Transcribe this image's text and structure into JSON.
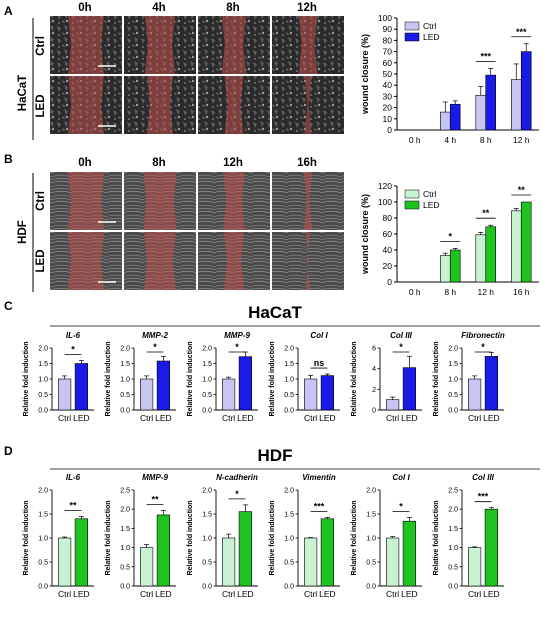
{
  "panel_labels": [
    "A",
    "B",
    "C",
    "D"
  ],
  "panelA": {
    "row_labels": [
      "Ctrl",
      "LED"
    ],
    "cell_line": "HaCaT",
    "time_labels": [
      "0h",
      "4h",
      "8h",
      "12h"
    ],
    "wound_fraction": [
      [
        0.5,
        0.42,
        0.34,
        0.26
      ],
      [
        0.5,
        0.36,
        0.26,
        0.1
      ]
    ]
  },
  "panelB": {
    "row_labels": [
      "Ctrl",
      "LED"
    ],
    "cell_line": "HDF",
    "time_labels": [
      "0h",
      "8h",
      "12h",
      "16h"
    ],
    "wound_fraction": [
      [
        0.5,
        0.46,
        0.3,
        0.12
      ],
      [
        0.5,
        0.44,
        0.28,
        0.06
      ]
    ]
  },
  "panelC": {
    "title": "HaCaT"
  },
  "panelD": {
    "title": "HDF"
  },
  "colors": {
    "ctrl_blue": "#c7c6f2",
    "led_blue": "#1a1ae6",
    "ctrl_green": "#c9f2d3",
    "led_green": "#1fc31f",
    "wound_overlay": "#c0504d"
  },
  "chart_data": [
    {
      "id": "A-closure",
      "type": "bar",
      "ylabel": "wound closure (%)",
      "categories": [
        "0 h",
        "4 h",
        "8 h",
        "12 h"
      ],
      "ylim": [
        0,
        100
      ],
      "yticks": [
        0,
        10,
        20,
        30,
        40,
        50,
        60,
        70,
        80,
        90,
        100
      ],
      "legend": "top-left",
      "series": [
        {
          "name": "Ctrl",
          "color": "#c7c6f2",
          "values": [
            0,
            16,
            31,
            45
          ],
          "errors": [
            0,
            9,
            8,
            14
          ]
        },
        {
          "name": "LED",
          "color": "#1a1ae6",
          "values": [
            0,
            23,
            49,
            70
          ],
          "errors": [
            0,
            3,
            6,
            7
          ]
        }
      ],
      "significance": [
        {
          "category": 2,
          "label": "***"
        },
        {
          "category": 3,
          "label": "***"
        }
      ]
    },
    {
      "id": "B-closure",
      "type": "bar",
      "ylabel": "wound closure (%)",
      "categories": [
        "0 h",
        "8 h",
        "12 h",
        "16 h"
      ],
      "ylim": [
        0,
        120
      ],
      "yticks": [
        0,
        20,
        40,
        60,
        80,
        100,
        120
      ],
      "legend": "top-left",
      "series": [
        {
          "name": "Ctrl",
          "color": "#c9f2d3",
          "values": [
            0,
            33,
            59,
            89
          ],
          "errors": [
            0,
            3,
            3,
            3
          ]
        },
        {
          "name": "LED",
          "color": "#1fc31f",
          "values": [
            0,
            40,
            69,
            100
          ],
          "errors": [
            0,
            2,
            2,
            0
          ]
        }
      ],
      "significance": [
        {
          "category": 1,
          "label": "*"
        },
        {
          "category": 2,
          "label": "**"
        },
        {
          "category": 3,
          "label": "**"
        }
      ]
    },
    {
      "id": "C-IL-6",
      "type": "bar",
      "title": "IL-6",
      "ylabel": "Relative fold induction",
      "categories": [
        "Ctrl",
        "LED"
      ],
      "values": [
        1.0,
        1.5
      ],
      "errors": [
        0.1,
        0.1
      ],
      "ylim": [
        0,
        2.0
      ],
      "yticks": [
        "0.0",
        "0.5",
        "1.0",
        "1.5",
        "2.0"
      ],
      "colors": [
        "#c7c6f2",
        "#1a1ae6"
      ],
      "significance": "*"
    },
    {
      "id": "C-MMP-2",
      "type": "bar",
      "title": "MMP-2",
      "ylabel": "Relative fold induction",
      "categories": [
        "Ctrl",
        "LED"
      ],
      "values": [
        1.0,
        1.58
      ],
      "errors": [
        0.1,
        0.15
      ],
      "ylim": [
        0,
        2.0
      ],
      "yticks": [
        "0.0",
        "0.5",
        "1.0",
        "1.5",
        "2.0"
      ],
      "colors": [
        "#c7c6f2",
        "#1a1ae6"
      ],
      "significance": "*"
    },
    {
      "id": "C-MMP-9",
      "type": "bar",
      "title": "MMP-9",
      "ylabel": "Relative fold induction",
      "categories": [
        "Ctrl",
        "LED"
      ],
      "values": [
        1.0,
        1.72
      ],
      "errors": [
        0.06,
        0.15
      ],
      "ylim": [
        0,
        2.0
      ],
      "yticks": [
        "0.0",
        "0.5",
        "1.0",
        "1.5",
        "2.0"
      ],
      "colors": [
        "#c7c6f2",
        "#1a1ae6"
      ],
      "significance": "*"
    },
    {
      "id": "C-Col-I",
      "type": "bar",
      "title": "Col I",
      "ylabel": "Relative fold induction",
      "categories": [
        "Ctrl",
        "LED"
      ],
      "values": [
        1.0,
        1.11
      ],
      "errors": [
        0.12,
        0.05
      ],
      "ylim": [
        0,
        2.0
      ],
      "yticks": [
        "0.0",
        "0.5",
        "1.0",
        "1.5",
        "2.0"
      ],
      "colors": [
        "#c7c6f2",
        "#1a1ae6"
      ],
      "significance": "ns"
    },
    {
      "id": "C-Col-III",
      "type": "bar",
      "title": "Col III",
      "ylabel": "Relative fold induction",
      "categories": [
        "Ctrl",
        "LED"
      ],
      "values": [
        1.0,
        4.1
      ],
      "errors": [
        0.25,
        1.1
      ],
      "ylim": [
        0,
        6
      ],
      "yticks": [
        "0",
        "2",
        "4",
        "6"
      ],
      "colors": [
        "#c7c6f2",
        "#1a1ae6"
      ],
      "significance": "*"
    },
    {
      "id": "C-Fibronectin",
      "type": "bar",
      "title": "Fibronectin",
      "ylabel": "Relative fold induction",
      "categories": [
        "Ctrl",
        "LED"
      ],
      "values": [
        1.0,
        1.73
      ],
      "errors": [
        0.1,
        0.13
      ],
      "ylim": [
        0,
        2.0
      ],
      "yticks": [
        "0.0",
        "0.5",
        "1.0",
        "1.5",
        "2.0"
      ],
      "colors": [
        "#c7c6f2",
        "#1a1ae6"
      ],
      "significance": "*"
    },
    {
      "id": "D-IL-6",
      "type": "bar",
      "title": "IL-6",
      "ylabel": "Relative fold induction",
      "categories": [
        "Ctrl",
        "LED"
      ],
      "values": [
        1.0,
        1.4
      ],
      "errors": [
        0.02,
        0.05
      ],
      "ylim": [
        0,
        2.0
      ],
      "yticks": [
        "0.0",
        "0.5",
        "1.0",
        "1.5",
        "2.0"
      ],
      "colors": [
        "#c9f2d3",
        "#1fc31f"
      ],
      "significance": "**"
    },
    {
      "id": "D-MMP-9",
      "type": "bar",
      "title": "MMP-9",
      "ylabel": "Relative fold induction",
      "categories": [
        "Ctrl",
        "LED"
      ],
      "values": [
        1.0,
        1.85
      ],
      "errors": [
        0.08,
        0.12
      ],
      "ylim": [
        0,
        2.5
      ],
      "yticks": [
        "0.0",
        "0.5",
        "1.0",
        "1.5",
        "2.0",
        "2.5"
      ],
      "colors": [
        "#c9f2d3",
        "#1fc31f"
      ],
      "significance": "**"
    },
    {
      "id": "D-N-cadherin",
      "type": "bar",
      "title": "N-cadherin",
      "ylabel": "Relative fold induction",
      "categories": [
        "Ctrl",
        "LED"
      ],
      "values": [
        1.0,
        1.55
      ],
      "errors": [
        0.08,
        0.14
      ],
      "ylim": [
        0,
        2.0
      ],
      "yticks": [
        "0.0",
        "0.5",
        "1.0",
        "1.5",
        "2.0"
      ],
      "colors": [
        "#c9f2d3",
        "#1fc31f"
      ],
      "significance": "*"
    },
    {
      "id": "D-Vimentin",
      "type": "bar",
      "title": "Vimentin",
      "ylabel": "Relative fold induction",
      "categories": [
        "Ctrl",
        "LED"
      ],
      "values": [
        1.0,
        1.4
      ],
      "errors": [
        0.01,
        0.03
      ],
      "ylim": [
        0,
        2.0
      ],
      "yticks": [
        "0.0",
        "0.5",
        "1.0",
        "1.5",
        "2.0"
      ],
      "colors": [
        "#c9f2d3",
        "#1fc31f"
      ],
      "significance": "***"
    },
    {
      "id": "D-Col-I",
      "type": "bar",
      "title": "Col I",
      "ylabel": "Relative fold induction",
      "categories": [
        "Ctrl",
        "LED"
      ],
      "values": [
        1.0,
        1.35
      ],
      "errors": [
        0.03,
        0.08
      ],
      "ylim": [
        0,
        2.0
      ],
      "yticks": [
        "0.0",
        "0.5",
        "1.0",
        "1.5",
        "2.0"
      ],
      "colors": [
        "#c9f2d3",
        "#1fc31f"
      ],
      "significance": "*"
    },
    {
      "id": "D-Col-III",
      "type": "bar",
      "title": "Col III",
      "ylabel": "Relative fold induction",
      "categories": [
        "Ctrl",
        "LED"
      ],
      "values": [
        1.0,
        2.0
      ],
      "errors": [
        0.02,
        0.04
      ],
      "ylim": [
        0,
        2.5
      ],
      "yticks": [
        "0.0",
        "0.5",
        "1.0",
        "1.5",
        "2.0",
        "2.5"
      ],
      "colors": [
        "#c9f2d3",
        "#1fc31f"
      ],
      "significance": "***"
    }
  ]
}
